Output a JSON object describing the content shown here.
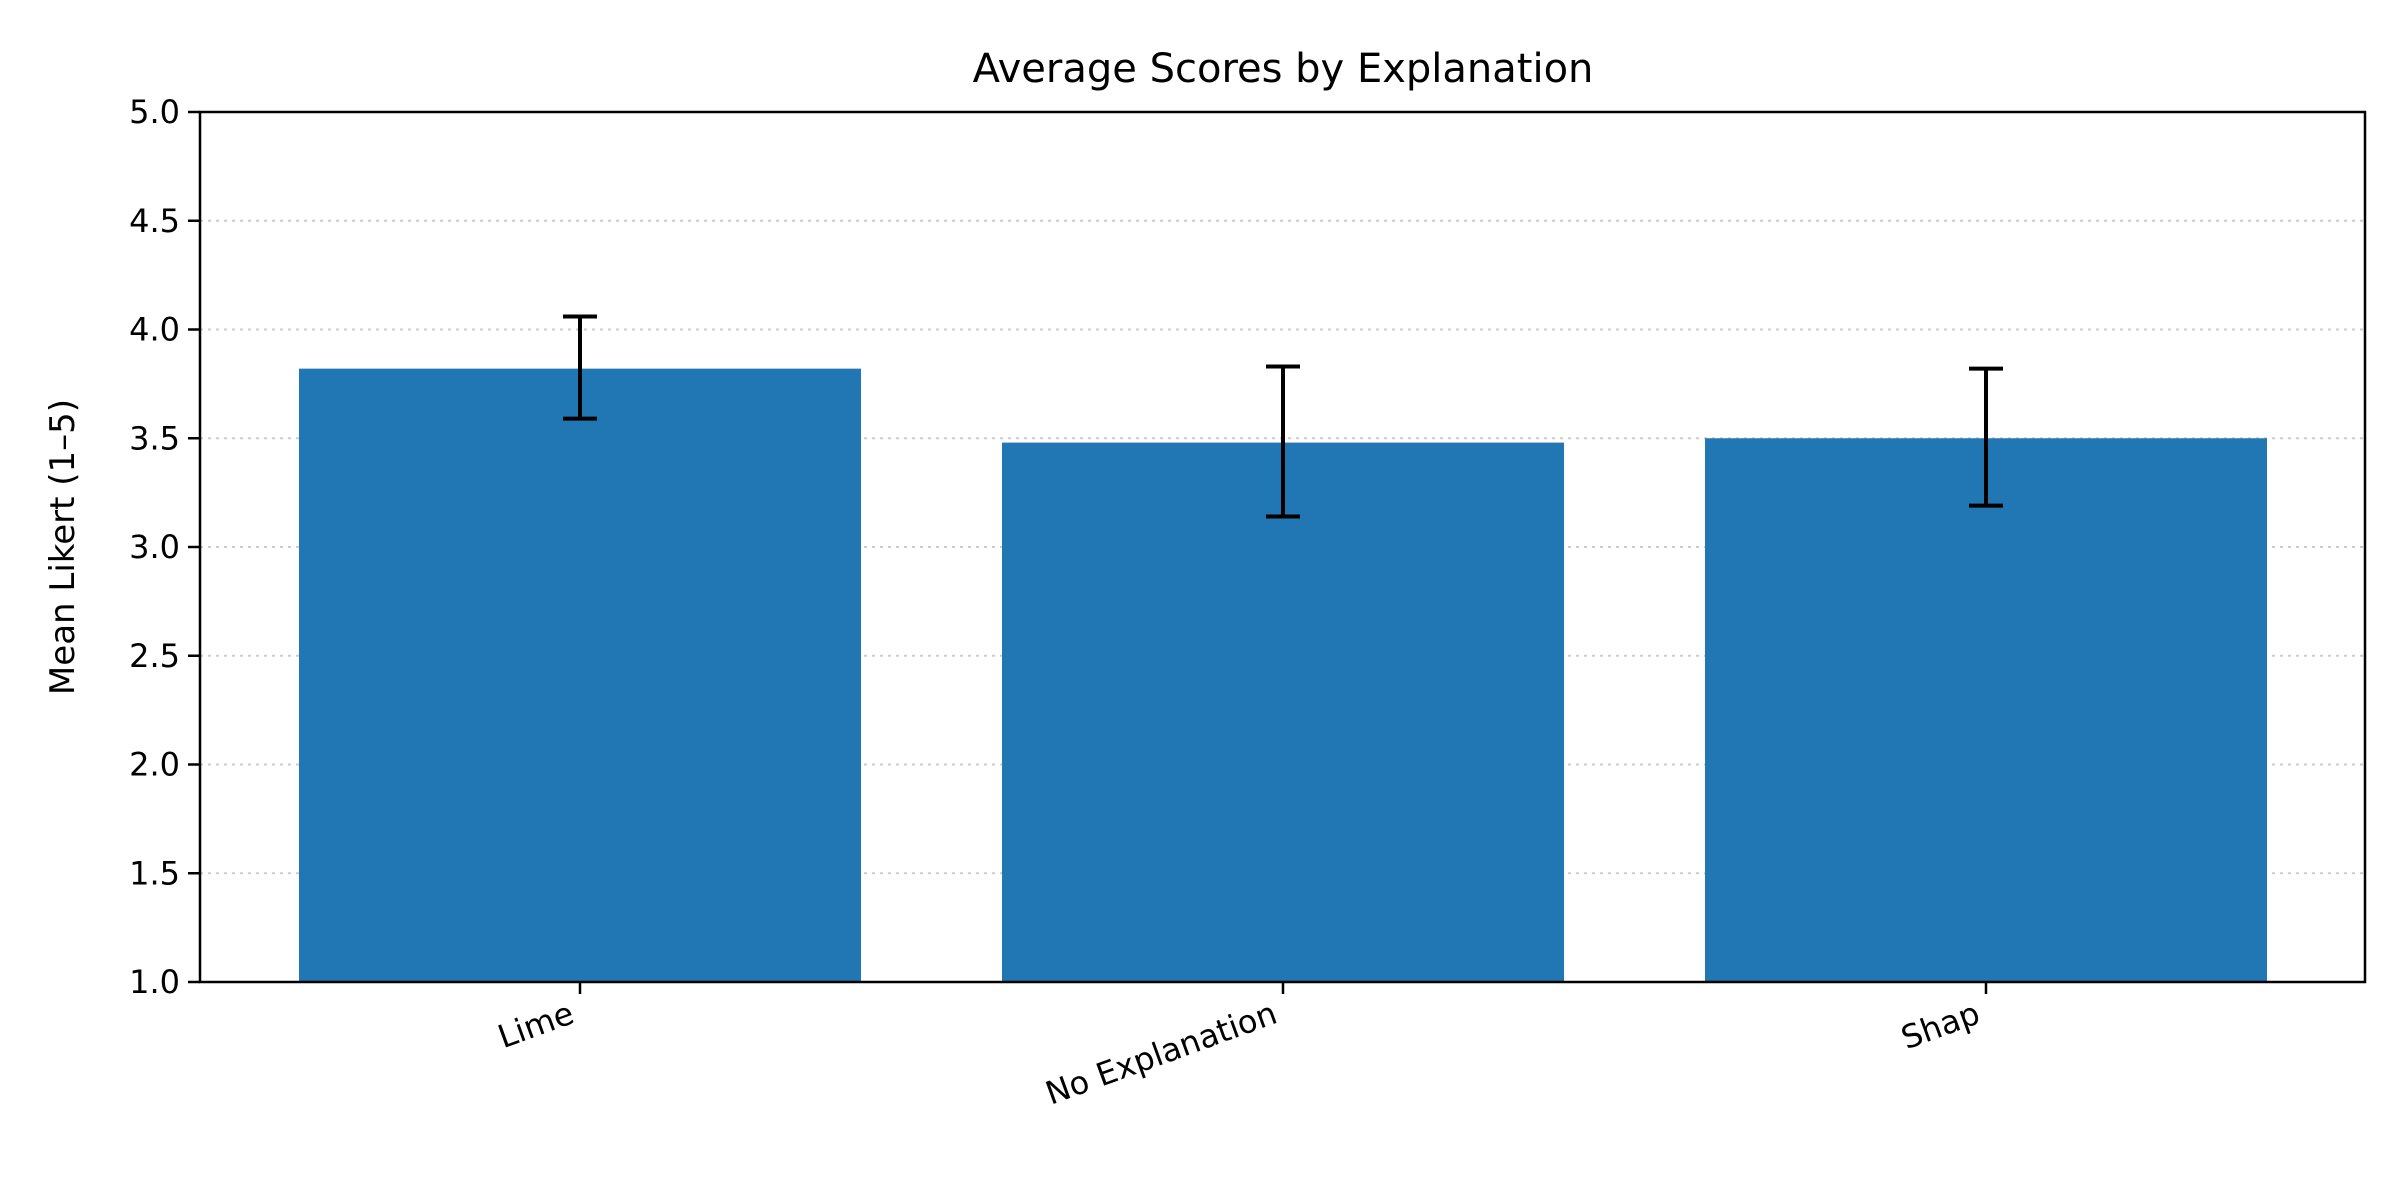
{
  "chart_data": {
    "type": "bar",
    "title": "Average Scores by Explanation",
    "xlabel": "",
    "ylabel": "Mean Likert (1–5)",
    "categories": [
      "Lime",
      "No Explanation",
      "Shap"
    ],
    "values": [
      3.82,
      3.48,
      3.5
    ],
    "error_low": [
      3.59,
      3.14,
      3.19
    ],
    "error_high": [
      4.06,
      3.83,
      3.82
    ],
    "ylim": [
      1.0,
      5.0
    ],
    "yticks": [
      "1.0",
      "1.5",
      "2.0",
      "2.5",
      "3.0",
      "3.5",
      "4.0",
      "4.5",
      "5.0"
    ],
    "grid": "horizontal dotted",
    "bar_color": "#2077b4",
    "grid_color": "#cccccc",
    "x_tick_rotation": "angled"
  }
}
